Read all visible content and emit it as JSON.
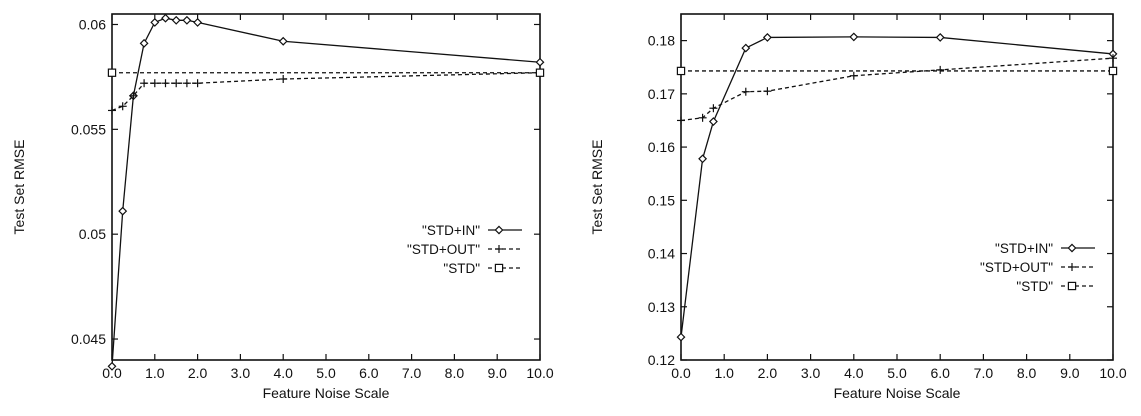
{
  "chart_data": [
    {
      "type": "line",
      "xlabel": "Feature Noise Scale",
      "ylabel": "Test Set RMSE",
      "xlim": [
        0,
        10
      ],
      "ylim": [
        0.044,
        0.0605
      ],
      "xticks": [
        "0.0",
        "1.0",
        "2.0",
        "3.0",
        "4.0",
        "5.0",
        "6.0",
        "7.0",
        "8.0",
        "9.0",
        "10.0"
      ],
      "yticks": [
        "0.045",
        "0.05",
        "0.055",
        "0.06"
      ],
      "ytick_values": [
        0.045,
        0.05,
        0.055,
        0.06
      ],
      "grid": false,
      "legend_position": "right",
      "series": [
        {
          "name": "\"STD+IN\"",
          "marker": "diamond",
          "line_style": "solid",
          "x": [
            0.0,
            0.25,
            0.5,
            0.75,
            1.0,
            1.25,
            1.5,
            1.75,
            2.0,
            4.0,
            10.0
          ],
          "y": [
            0.0437,
            0.0511,
            0.0566,
            0.0591,
            0.0601,
            0.0603,
            0.0602,
            0.0602,
            0.0601,
            0.0592,
            0.0582
          ]
        },
        {
          "name": "\"STD+OUT\"",
          "marker": "plus",
          "line_style": "dashed",
          "x": [
            0.0,
            0.25,
            0.5,
            0.75,
            1.0,
            1.25,
            1.5,
            1.75,
            2.0,
            4.0,
            10.0
          ],
          "y": [
            0.0559,
            0.0561,
            0.0566,
            0.0572,
            0.0572,
            0.0572,
            0.0572,
            0.0572,
            0.0572,
            0.0574,
            0.0577
          ]
        },
        {
          "name": "\"STD\"",
          "marker": "square",
          "line_style": "dashed",
          "x": [
            0.0,
            10.0
          ],
          "y": [
            0.0577,
            0.0577
          ]
        }
      ]
    },
    {
      "type": "line",
      "xlabel": "Feature Noise Scale",
      "ylabel": "Test Set RMSE",
      "xlim": [
        0,
        10
      ],
      "ylim": [
        0.12,
        0.185
      ],
      "xticks": [
        "0.0",
        "1.0",
        "2.0",
        "3.0",
        "4.0",
        "5.0",
        "6.0",
        "7.0",
        "8.0",
        "9.0",
        "10.0"
      ],
      "yticks": [
        "0.12",
        "0.13",
        "0.14",
        "0.15",
        "0.16",
        "0.17",
        "0.18"
      ],
      "ytick_values": [
        0.12,
        0.13,
        0.14,
        0.15,
        0.16,
        0.17,
        0.18
      ],
      "grid": false,
      "legend_position": "right",
      "series": [
        {
          "name": "\"STD+IN\"",
          "marker": "diamond",
          "line_style": "solid",
          "x": [
            0.0,
            0.5,
            0.75,
            1.5,
            2.0,
            4.0,
            6.0,
            10.0
          ],
          "y": [
            0.1243,
            0.1578,
            0.1648,
            0.1786,
            0.1806,
            0.1807,
            0.1806,
            0.1775
          ]
        },
        {
          "name": "\"STD+OUT\"",
          "marker": "plus",
          "line_style": "dashed",
          "x": [
            0.0,
            0.5,
            0.75,
            1.5,
            2.0,
            4.0,
            6.0,
            10.0
          ],
          "y": [
            0.165,
            0.1655,
            0.1673,
            0.1704,
            0.1705,
            0.1734,
            0.1745,
            0.1767
          ]
        },
        {
          "name": "\"STD\"",
          "marker": "square",
          "line_style": "dashed",
          "x": [
            0.0,
            10.0
          ],
          "y": [
            0.1743,
            0.1743
          ]
        }
      ]
    }
  ]
}
